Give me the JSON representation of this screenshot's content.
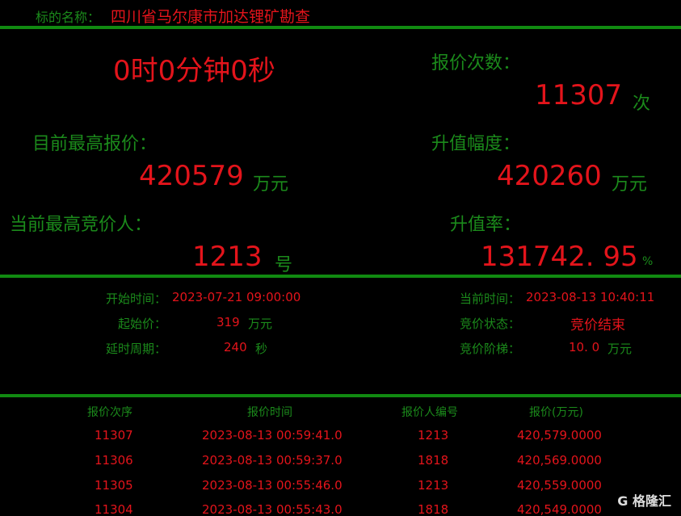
{
  "header": {
    "label": "标的名称：",
    "name": "四川省马尔康市加达锂矿勘查"
  },
  "countdown": "0时0分钟0秒",
  "bid_count": {
    "label": "报价次数：",
    "value": "11307",
    "unit": "次"
  },
  "highest_bid": {
    "label": "目前最高报价：",
    "value": "420579",
    "unit": "万元"
  },
  "increase": {
    "label": "升值幅度：",
    "value": "420260",
    "unit": "万元"
  },
  "highest_bidder": {
    "label": "当前最高竞价人：",
    "value": "1213",
    "unit": "号"
  },
  "increase_rate": {
    "label": "升值率：",
    "value": "131742. 95",
    "unit": "%"
  },
  "info": {
    "start_time": {
      "label": "开始时间：",
      "value": "2023-07-21 09:00:00"
    },
    "start_price": {
      "label": "起始价：",
      "value": "319",
      "unit": "万元"
    },
    "delay": {
      "label": "延时周期：",
      "value": "240",
      "unit": "秒"
    },
    "current_time": {
      "label": "当前时间：",
      "value": "2023-08-13 10:40:11"
    },
    "status": {
      "label": "竞价状态：",
      "value": "竞价结束"
    },
    "step": {
      "label": "竞价阶梯：",
      "value": "10. 0",
      "unit": "万元"
    }
  },
  "table": {
    "headers": [
      "报价次序",
      "报价时间",
      "报价人编号",
      "报价(万元)"
    ],
    "rows": [
      [
        "11307",
        "2023-08-13 00:59:41.0",
        "1213",
        "420,579.0000"
      ],
      [
        "11306",
        "2023-08-13 00:59:37.0",
        "1818",
        "420,569.0000"
      ],
      [
        "11305",
        "2023-08-13 00:55:46.0",
        "1213",
        "420,559.0000"
      ],
      [
        "11304",
        "2023-08-13 00:55:43.0",
        "1818",
        "420,549.0000"
      ]
    ]
  },
  "watermark": "G 格隆汇",
  "colors": {
    "green": "#1b8a1b",
    "red": "#e3141b",
    "background": "#000000"
  }
}
